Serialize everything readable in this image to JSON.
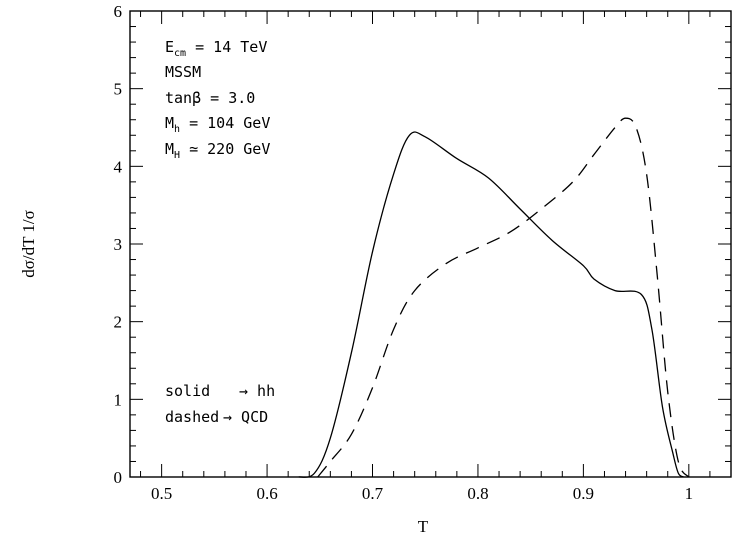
{
  "chart_data": {
    "type": "line",
    "xlabel": "T",
    "ylabel": "dσ/dT 1/σ",
    "xlim": [
      0.47,
      1.04
    ],
    "ylim": [
      0,
      6
    ],
    "x_ticks": [
      0.5,
      0.6,
      0.7,
      0.8,
      0.9,
      1.0
    ],
    "x_tick_labels": [
      "0.5",
      "0.6",
      "0.7",
      "0.8",
      "0.9",
      "1"
    ],
    "y_ticks": [
      0,
      1,
      2,
      3,
      4,
      5,
      6
    ],
    "y_tick_labels": [
      "0",
      "1",
      "2",
      "3",
      "4",
      "5",
      "6"
    ],
    "annotations": {
      "line1_main": "E",
      "line1_sub": "cm",
      "line1_rest": " = 14 TeV",
      "line2": "MSSM",
      "line3": "tanβ = 3.0",
      "line4_main": "M",
      "line4_sub": "h",
      "line4_rest": " = 104 GeV",
      "line5_main": "M",
      "line5_sub": "H",
      "line5_rest": " ≃ 220 GeV"
    },
    "legend_text": {
      "solid_label": "solid",
      "solid_target": "→ hh",
      "dashed_label": "dashed",
      "dashed_target": "→ QCD"
    },
    "series": [
      {
        "style": "solid",
        "x": [
          0.63,
          0.645,
          0.66,
          0.68,
          0.7,
          0.72,
          0.735,
          0.75,
          0.78,
          0.81,
          0.84,
          0.87,
          0.9,
          0.91,
          0.93,
          0.955,
          0.965,
          0.975,
          0.985,
          0.99,
          0.995
        ],
        "y": [
          0,
          0.05,
          0.5,
          1.6,
          2.9,
          3.9,
          4.4,
          4.38,
          4.1,
          3.85,
          3.45,
          3.05,
          2.72,
          2.55,
          2.4,
          2.35,
          1.9,
          0.9,
          0.3,
          0.05,
          0
        ]
      },
      {
        "style": "dashed",
        "x": [
          0.648,
          0.66,
          0.68,
          0.7,
          0.72,
          0.74,
          0.77,
          0.8,
          0.83,
          0.86,
          0.89,
          0.91,
          0.93,
          0.94,
          0.95,
          0.96,
          0.97,
          0.98,
          0.99,
          1.0
        ],
        "y": [
          0,
          0.2,
          0.55,
          1.15,
          1.9,
          2.4,
          2.75,
          2.95,
          3.15,
          3.45,
          3.8,
          4.15,
          4.5,
          4.62,
          4.5,
          3.9,
          2.6,
          1.1,
          0.2,
          0
        ]
      }
    ]
  }
}
